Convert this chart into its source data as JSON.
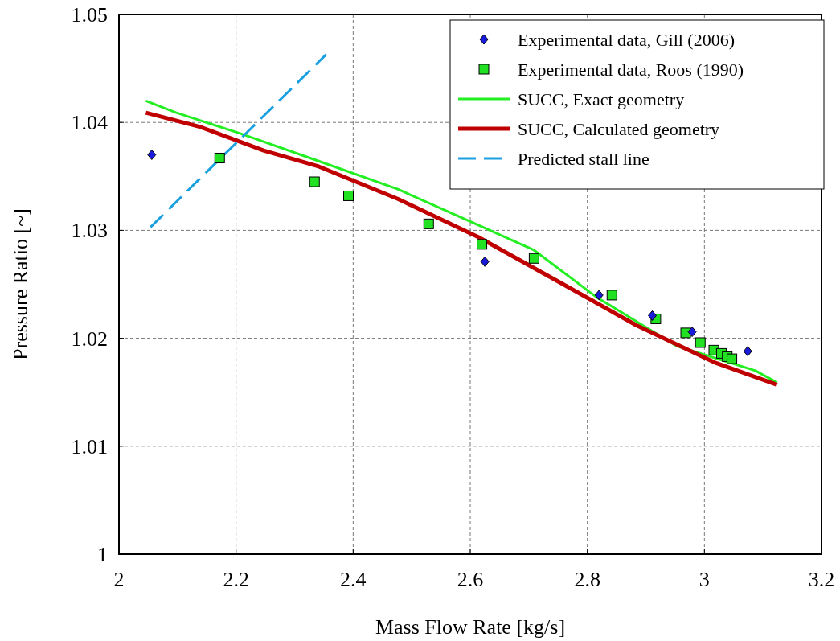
{
  "chart_data": {
    "type": "scatter",
    "xlabel": "Mass Flow Rate [kg/s]",
    "ylabel": "Pressure Ratio [~]",
    "xlim": [
      2,
      3.2
    ],
    "ylim": [
      1,
      1.05
    ],
    "xticks": [
      2,
      2.2,
      2.4,
      2.6,
      2.8,
      3,
      3.2
    ],
    "yticks": [
      1,
      1.01,
      1.02,
      1.03,
      1.04,
      1.05
    ],
    "grid": true,
    "legend": "top right",
    "series": [
      {
        "name": "Experimental data, Gill (2006)",
        "marker": "diamond",
        "color": "#1a1adb",
        "x": [
          2.056,
          2.625,
          2.82,
          2.911,
          2.979,
          3.074
        ],
        "values": [
          1.037,
          1.0271,
          1.024,
          1.0221,
          1.0206,
          1.0188
        ]
      },
      {
        "name": "Experimental data, Roos (1990)",
        "marker": "square",
        "color": "#22e022",
        "x": [
          2.172,
          2.334,
          2.392,
          2.529,
          2.62,
          2.709,
          2.842,
          2.917,
          2.968,
          2.993,
          3.016,
          3.029,
          3.039,
          3.047
        ],
        "values": [
          1.0367,
          1.0345,
          1.0332,
          1.0306,
          1.0287,
          1.0274,
          1.024,
          1.0218,
          1.0205,
          1.0196,
          1.0189,
          1.0186,
          1.0183,
          1.0181
        ]
      },
      {
        "name": "SUCC, Exact geometry",
        "type": "line",
        "line_style": "solid",
        "color": "#22ee22",
        "x": [
          2.046,
          2.098,
          2.206,
          2.342,
          2.477,
          2.613,
          2.708,
          2.816,
          2.952,
          3.087,
          3.124
        ],
        "values": [
          1.042,
          1.0409,
          1.039,
          1.0364,
          1.0338,
          1.0305,
          1.0282,
          1.0238,
          1.0193,
          1.017,
          1.0159
        ]
      },
      {
        "name": "SUCC, Calculated geometry",
        "type": "line",
        "line_style": "solid",
        "color": "#c00000",
        "x": [
          2.046,
          2.138,
          2.247,
          2.342,
          2.477,
          2.613,
          2.749,
          2.884,
          3.02,
          3.124
        ],
        "values": [
          1.0409,
          1.0396,
          1.0374,
          1.0359,
          1.0329,
          1.0294,
          1.0253,
          1.0212,
          1.0177,
          1.0157
        ]
      },
      {
        "name": "Predicted stall line",
        "type": "line",
        "line_style": "dashed",
        "color": "#1aa0e0",
        "x": [
          2.054,
          2.354
        ],
        "values": [
          1.0303,
          1.0463
        ]
      }
    ]
  }
}
